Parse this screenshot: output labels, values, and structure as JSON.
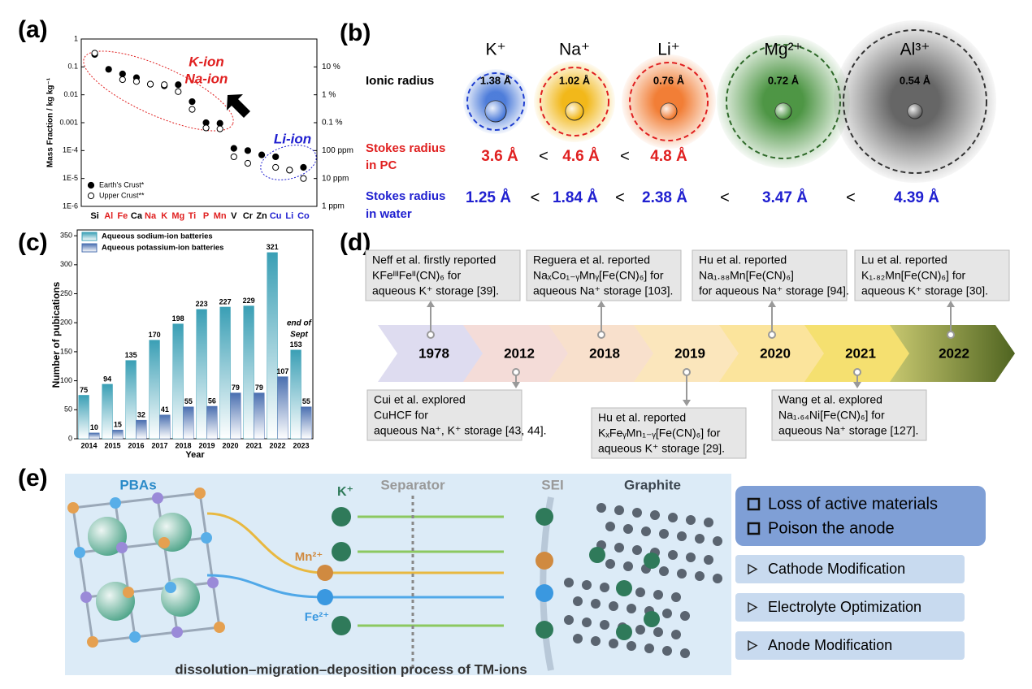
{
  "chart_data": [
    {
      "type": "scatter",
      "label": "(a)",
      "y_label": "Mass Fraction  /  kg kg⁻¹",
      "log_scale": true,
      "legend": "lower left",
      "categories": [
        "Si",
        "Al",
        "Fe",
        "Ca",
        "Na",
        "K",
        "Mg",
        "Ti",
        "P",
        "Mn",
        "V",
        "Cr",
        "Zn",
        "Cu",
        "Li",
        "Co"
      ],
      "category_colors": [
        "#000000",
        "#e02020",
        "#e02020",
        "#000000",
        "#e02020",
        "#e02020",
        "#e02020",
        "#e02020",
        "#e02020",
        "#e02020",
        "#000000",
        "#000000",
        "#000000",
        "#2020d0",
        "#2020d0",
        "#2020d0"
      ],
      "ylim": [
        1e-06,
        1
      ],
      "yticks": [
        {
          "value": 1e-06,
          "label": "1E-6"
        },
        {
          "value": 1e-05,
          "label": "1E-5"
        },
        {
          "value": 0.0001,
          "label": "1E-4"
        },
        0.001,
        0.01,
        0.1,
        1
      ],
      "y2lim": [
        1e-06,
        1
      ],
      "y2ticks": [
        {
          "value": 1e-06,
          "label": "1 ppm"
        },
        {
          "value": 1e-05,
          "label": "10 ppm"
        },
        {
          "value": 0.0001,
          "label": "100 ppm"
        },
        {
          "value": 0.001,
          "label": "0.1 %"
        },
        {
          "value": 0.01,
          "label": "1 %"
        },
        {
          "value": 0.1,
          "label": "10 %"
        }
      ],
      "series": [
        {
          "name": "Earth's Crust*",
          "color": "#000000",
          "marker": "filled",
          "values": [
            0.28,
            0.082,
            0.056,
            0.041,
            0.024,
            0.021,
            0.023,
            0.0057,
            0.001,
            0.00095,
            0.00012,
            0.0001,
            7e-05,
            6e-05,
            2e-05,
            2.5e-05
          ]
        },
        {
          "name": "Upper Crust**",
          "color": "#000000",
          "marker": "open",
          "values": [
            0.31,
            null,
            0.035,
            0.03,
            0.024,
            0.023,
            0.013,
            0.003,
            0.00065,
            0.0006,
            6e-05,
            3.5e-05,
            null,
            2.5e-05,
            2e-05,
            1e-05
          ]
        }
      ],
      "annotations": [
        {
          "text": "K-ion",
          "color": "#e02020"
        },
        {
          "text": "Na-ion",
          "color": "#e02020"
        },
        {
          "text": "Li-ion",
          "color": "#2020d0"
        }
      ]
    },
    {
      "type": "bar",
      "label": "(c)",
      "x_label": "Year",
      "y_label": "Number of pubications",
      "legend": "upper left",
      "categories": [
        "2014",
        "2015",
        "2016",
        "2017",
        "2018",
        "2019",
        "2020",
        "2021",
        "2022",
        "2023"
      ],
      "ylim": [
        0,
        360
      ],
      "yticks": [
        0,
        50,
        100,
        150,
        200,
        250,
        300,
        350
      ],
      "series": [
        {
          "name": "Aqueous sodium-ion batteries",
          "color": "#3a9fb5",
          "values": [
            75,
            94,
            135,
            170,
            198,
            223,
            227,
            229,
            321,
            153
          ]
        },
        {
          "name": "Aqueous potassium-ion batteries",
          "color": "#4a6fb0",
          "values": [
            10,
            15,
            32,
            41,
            55,
            56,
            79,
            79,
            107,
            55
          ]
        }
      ],
      "annotation": [
        "end of",
        "Sept"
      ]
    }
  ],
  "ion_panel": {
    "label": "(b)",
    "comparison": "<",
    "row_labels": {
      "ionic": [
        "Ionic radius"
      ],
      "stokes_pc": [
        "Stokes radius",
        "in PC"
      ],
      "stokes_water": [
        "Stokes radius",
        "in water"
      ]
    },
    "ions": [
      {
        "name": "K⁺",
        "color": "#3b6fd6",
        "ionic_radius": "1.38 Å",
        "stokes_pc": "3.6 Å",
        "stokes_water": "1.25 Å"
      },
      {
        "name": "Na⁺",
        "color": "#f0b000",
        "ionic_radius": "1.02 Å",
        "stokes_pc": "4.6 Å",
        "stokes_water": "1.84 Å"
      },
      {
        "name": "Li⁺",
        "color": "#f07020",
        "ionic_radius": "0.76 Å",
        "stokes_pc": "4.8 Å",
        "stokes_water": "2.38 Å"
      },
      {
        "name": "Mg²⁺",
        "color": "#3a8a30",
        "ionic_radius": "0.72 Å",
        "stokes_water": "3.47 Å"
      },
      {
        "name": "Al³⁺",
        "color": "#555555",
        "ionic_radius": "0.54 Å",
        "stokes_water": "4.39 Å"
      }
    ]
  },
  "timeline": {
    "label": "(d)",
    "milestones": [
      {
        "year": "1978",
        "lines": [
          "Neff et al. firstly reported",
          "KFeᴵᴵᴵFeᴵᴵ(CN)₆ for",
          "aqueous K⁺ storage [39]."
        ]
      },
      {
        "year": "2012",
        "lines": [
          "Cui et al. explored",
          "CuHCF for",
          "aqueous Na⁺, K⁺ storage [43, 44]."
        ]
      },
      {
        "year": "2018",
        "lines": [
          "Reguera et al. reported",
          "NaₓCo₁₋ᵧMnᵧ[Fe(CN)₆] for",
          "aqueous Na⁺ storage [103]."
        ]
      },
      {
        "year": "2019",
        "lines": [
          "Hu et al. reported",
          "KₓFeᵧMn₁₋ᵧ[Fe(CN)₆] for",
          "aqueous K⁺ storage [29]."
        ]
      },
      {
        "year": "2020",
        "lines": [
          "Hu et al. reported",
          "Na₁.₈₈Mn[Fe(CN)₆]",
          "for aqueous Na⁺ storage [94]."
        ]
      },
      {
        "year": "2021",
        "lines": [
          "Wang et al. explored",
          "Na₁.₆₄Ni[Fe(CN)₆] for",
          "aqueous Na⁺ storage [127]."
        ]
      },
      {
        "year": "2022",
        "lines": [
          "Lu et al. reported",
          "K₁.₈₂Mn[Fe(CN)₆] for",
          "aqueous K⁺ storage [30]."
        ]
      }
    ]
  },
  "process": {
    "label": "(e)",
    "cathode": "PBAs",
    "anode": "Graphite",
    "separator": "Separator",
    "sei": "SEI",
    "ions": [
      "K⁺",
      "Mn²⁺",
      "Fe²⁺"
    ],
    "caption": "dissolution–migration–deposition process of TM-ions",
    "problems": [
      "Loss of active materials",
      "Poison the anode"
    ],
    "strategies": [
      "Cathode Modification",
      "Electrolyte Optimization",
      "Anode Modification"
    ]
  }
}
